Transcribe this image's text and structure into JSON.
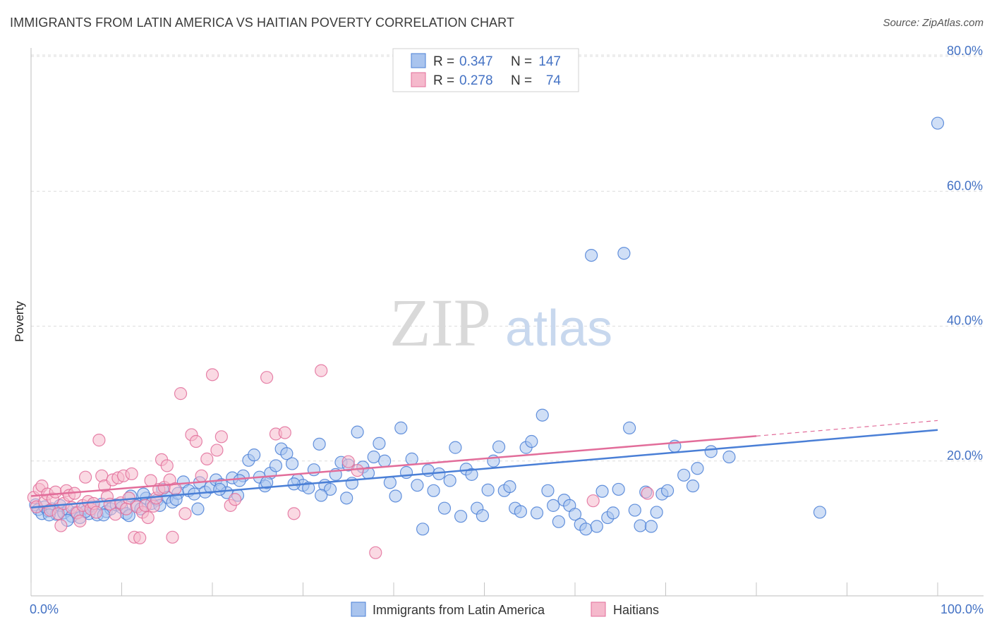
{
  "title": "IMMIGRANTS FROM LATIN AMERICA VS HAITIAN POVERTY CORRELATION CHART",
  "source": "Source: ZipAtlas.com",
  "watermark": {
    "zip": "ZIP",
    "atlas": "atlas"
  },
  "colors": {
    "blue": "#4a7fd6",
    "blue_fill": "#a9c4ee",
    "pink": "#e26d9a",
    "pink_fill": "#f5b9cc",
    "tick": "#4472c4"
  },
  "legend": {
    "r_label": "R =",
    "n_label": "N =",
    "series": [
      {
        "r": "0.347",
        "n": "147"
      },
      {
        "r": "0.278",
        "n": "74"
      }
    ]
  },
  "chart_data": {
    "type": "scatter",
    "xlabel": "",
    "ylabel": "Poverty",
    "xlim": [
      0,
      100
    ],
    "ylim": [
      0,
      80
    ],
    "x_tick_labels": [
      "0.0%",
      "100.0%"
    ],
    "y_ticks": [
      20,
      40,
      60,
      80
    ],
    "y_tick_labels": [
      "20.0%",
      "40.0%",
      "60.0%",
      "80.0%"
    ],
    "grid": true,
    "legend_placement": "top-center",
    "series": [
      {
        "name": "Immigrants from Latin America",
        "trend": {
          "x": [
            0,
            100
          ],
          "y": [
            13.1,
            24.6
          ]
        },
        "points": [
          [
            0.5,
            13.5
          ],
          [
            0.8,
            12.8
          ],
          [
            1.2,
            12.2
          ],
          [
            1.5,
            13.2
          ],
          [
            1.9,
            12.6
          ],
          [
            2.3,
            12.9
          ],
          [
            2.8,
            12.1
          ],
          [
            3.2,
            13.4
          ],
          [
            3.6,
            12.3
          ],
          [
            4.1,
            12.7
          ],
          [
            4.5,
            11.8
          ],
          [
            5.0,
            12.4
          ],
          [
            5.4,
            11.6
          ],
          [
            5.9,
            13.0
          ],
          [
            6.4,
            12.2
          ],
          [
            6.8,
            13.3
          ],
          [
            7.3,
            12.0
          ],
          [
            7.8,
            13.6
          ],
          [
            8.3,
            12.5
          ],
          [
            8.8,
            12.9
          ],
          [
            9.4,
            13.5
          ],
          [
            10.0,
            13.1
          ],
          [
            10.5,
            12.2
          ],
          [
            11.0,
            14.8
          ],
          [
            11.6,
            13.4
          ],
          [
            12.1,
            12.9
          ],
          [
            12.7,
            14.5
          ],
          [
            13.3,
            13.7
          ],
          [
            13.9,
            14.2
          ],
          [
            14.5,
            15.8
          ],
          [
            15.0,
            14.6
          ],
          [
            15.6,
            13.9
          ],
          [
            16.2,
            15.2
          ],
          [
            16.8,
            16.9
          ],
          [
            17.4,
            15.6
          ],
          [
            18.0,
            15.1
          ],
          [
            18.6,
            16.8
          ],
          [
            19.2,
            15.4
          ],
          [
            19.8,
            16.1
          ],
          [
            20.4,
            17.2
          ],
          [
            21.0,
            16.5
          ],
          [
            21.6,
            15.3
          ],
          [
            22.2,
            17.5
          ],
          [
            22.8,
            14.9
          ],
          [
            23.4,
            17.8
          ],
          [
            24.0,
            20.1
          ],
          [
            24.6,
            20.9
          ],
          [
            25.2,
            17.6
          ],
          [
            25.8,
            16.3
          ],
          [
            26.4,
            18.2
          ],
          [
            27.0,
            19.3
          ],
          [
            27.6,
            21.8
          ],
          [
            28.2,
            21.1
          ],
          [
            28.8,
            19.6
          ],
          [
            29.4,
            17.2
          ],
          [
            30.0,
            16.4
          ],
          [
            30.6,
            16.0
          ],
          [
            31.2,
            18.7
          ],
          [
            31.8,
            22.5
          ],
          [
            32.4,
            16.4
          ],
          [
            33.0,
            15.8
          ],
          [
            33.6,
            18.0
          ],
          [
            34.2,
            19.8
          ],
          [
            34.8,
            14.5
          ],
          [
            35.4,
            16.7
          ],
          [
            36.0,
            24.3
          ],
          [
            36.6,
            19.1
          ],
          [
            37.2,
            18.2
          ],
          [
            37.8,
            20.6
          ],
          [
            38.4,
            22.6
          ],
          [
            39.0,
            20.0
          ],
          [
            39.6,
            16.8
          ],
          [
            40.2,
            14.8
          ],
          [
            40.8,
            24.9
          ],
          [
            41.4,
            18.3
          ],
          [
            42.0,
            20.3
          ],
          [
            42.6,
            16.4
          ],
          [
            43.2,
            9.9
          ],
          [
            43.8,
            18.6
          ],
          [
            44.4,
            15.6
          ],
          [
            45.0,
            18.1
          ],
          [
            45.6,
            13.0
          ],
          [
            46.2,
            17.1
          ],
          [
            46.8,
            22.0
          ],
          [
            47.4,
            11.8
          ],
          [
            48.0,
            18.8
          ],
          [
            48.6,
            18.0
          ],
          [
            49.2,
            13.0
          ],
          [
            49.8,
            11.9
          ],
          [
            50.4,
            15.7
          ],
          [
            51.0,
            20.0
          ],
          [
            51.6,
            22.1
          ],
          [
            52.2,
            15.6
          ],
          [
            52.8,
            16.2
          ],
          [
            53.4,
            13.0
          ],
          [
            54.0,
            12.5
          ],
          [
            54.6,
            22.0
          ],
          [
            55.2,
            22.9
          ],
          [
            55.8,
            12.3
          ],
          [
            56.4,
            26.8
          ],
          [
            57.0,
            15.6
          ],
          [
            57.6,
            13.4
          ],
          [
            58.2,
            11.0
          ],
          [
            58.8,
            14.2
          ],
          [
            59.4,
            13.4
          ],
          [
            60.0,
            12.1
          ],
          [
            60.6,
            10.6
          ],
          [
            61.2,
            9.9
          ],
          [
            61.8,
            50.5
          ],
          [
            62.4,
            10.3
          ],
          [
            63.0,
            15.5
          ],
          [
            63.6,
            11.6
          ],
          [
            64.2,
            12.3
          ],
          [
            64.8,
            15.8
          ],
          [
            65.4,
            50.8
          ],
          [
            66.0,
            24.9
          ],
          [
            66.6,
            12.7
          ],
          [
            67.2,
            10.4
          ],
          [
            67.8,
            15.4
          ],
          [
            68.4,
            10.3
          ],
          [
            69.0,
            12.4
          ],
          [
            69.6,
            15.1
          ],
          [
            70.2,
            15.6
          ],
          [
            71.0,
            22.2
          ],
          [
            72.0,
            17.9
          ],
          [
            73.0,
            16.3
          ],
          [
            73.5,
            18.9
          ],
          [
            75.0,
            21.4
          ],
          [
            77.0,
            20.6
          ],
          [
            87.0,
            12.4
          ],
          [
            100.0,
            70.1
          ],
          [
            2.0,
            12.0
          ],
          [
            4.0,
            11.2
          ],
          [
            6.0,
            12.5
          ],
          [
            8.0,
            12.0
          ],
          [
            10.8,
            11.9
          ],
          [
            12.4,
            15.1
          ],
          [
            14.2,
            13.4
          ],
          [
            16.0,
            14.3
          ],
          [
            18.4,
            12.9
          ],
          [
            20.8,
            15.8
          ],
          [
            23.0,
            17.1
          ],
          [
            26.0,
            16.8
          ],
          [
            29.0,
            16.6
          ],
          [
            32.0,
            14.9
          ],
          [
            35.0,
            19.4
          ]
        ]
      },
      {
        "name": "Haitians",
        "trend": {
          "x": [
            0,
            80
          ],
          "y": [
            14.8,
            23.7
          ]
        },
        "trend_extension": {
          "x": [
            80,
            100
          ],
          "y": [
            23.7,
            26.0
          ]
        },
        "points": [
          [
            0.3,
            14.6
          ],
          [
            0.6,
            13.2
          ],
          [
            0.9,
            15.8
          ],
          [
            1.2,
            16.3
          ],
          [
            1.5,
            13.9
          ],
          [
            1.8,
            15.1
          ],
          [
            2.1,
            12.7
          ],
          [
            2.4,
            14.4
          ],
          [
            2.7,
            15.4
          ],
          [
            3.0,
            12.2
          ],
          [
            3.3,
            10.4
          ],
          [
            3.6,
            13.7
          ],
          [
            3.9,
            15.6
          ],
          [
            4.2,
            14.9
          ],
          [
            4.5,
            13.1
          ],
          [
            4.8,
            15.2
          ],
          [
            5.1,
            12.3
          ],
          [
            5.4,
            11.1
          ],
          [
            5.7,
            13.4
          ],
          [
            6.0,
            17.6
          ],
          [
            6.3,
            14.0
          ],
          [
            6.6,
            12.9
          ],
          [
            6.9,
            13.7
          ],
          [
            7.2,
            12.4
          ],
          [
            7.5,
            23.1
          ],
          [
            7.8,
            17.8
          ],
          [
            8.1,
            16.3
          ],
          [
            8.4,
            14.7
          ],
          [
            8.7,
            13.6
          ],
          [
            9.0,
            17.2
          ],
          [
            9.3,
            12.1
          ],
          [
            9.6,
            17.5
          ],
          [
            9.9,
            13.8
          ],
          [
            10.2,
            17.8
          ],
          [
            10.5,
            12.9
          ],
          [
            10.8,
            14.5
          ],
          [
            11.1,
            18.1
          ],
          [
            11.4,
            8.7
          ],
          [
            11.7,
            13.2
          ],
          [
            12.0,
            8.6
          ],
          [
            12.3,
            12.4
          ],
          [
            12.6,
            13.4
          ],
          [
            12.9,
            11.6
          ],
          [
            13.2,
            17.1
          ],
          [
            13.5,
            13.3
          ],
          [
            13.8,
            14.5
          ],
          [
            14.1,
            15.8
          ],
          [
            14.4,
            20.2
          ],
          [
            14.7,
            16.1
          ],
          [
            15.0,
            19.3
          ],
          [
            15.3,
            17.2
          ],
          [
            15.6,
            8.7
          ],
          [
            15.9,
            15.9
          ],
          [
            16.5,
            30.0
          ],
          [
            17.0,
            12.2
          ],
          [
            17.7,
            23.9
          ],
          [
            18.2,
            22.9
          ],
          [
            18.8,
            17.8
          ],
          [
            19.4,
            20.3
          ],
          [
            20.0,
            32.8
          ],
          [
            20.5,
            21.6
          ],
          [
            21.0,
            23.6
          ],
          [
            22.0,
            13.4
          ],
          [
            26.0,
            32.4
          ],
          [
            27.0,
            24.0
          ],
          [
            28.0,
            24.2
          ],
          [
            29.0,
            12.2
          ],
          [
            32.0,
            33.4
          ],
          [
            35.0,
            19.9
          ],
          [
            36.0,
            18.6
          ],
          [
            38.0,
            6.4
          ],
          [
            62.0,
            14.1
          ],
          [
            68.0,
            15.2
          ],
          [
            22.5,
            14.3
          ]
        ]
      }
    ]
  },
  "bottom_legend": [
    "Immigrants from Latin America",
    "Haitians"
  ]
}
